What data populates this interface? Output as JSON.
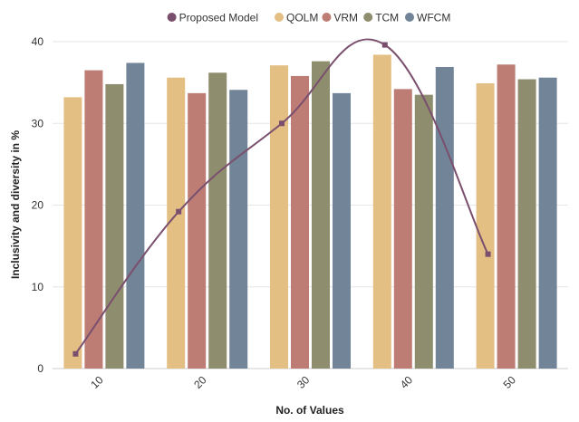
{
  "chart_data": {
    "type": "bar",
    "xlabel": "No. of Values",
    "ylabel": "Inclusivity and diversity in %",
    "categories": [
      "10",
      "20",
      "30",
      "40",
      "50"
    ],
    "ylim": [
      0,
      40
    ],
    "yticks": [
      "0",
      "10",
      "20",
      "30",
      "40"
    ],
    "grid": "horizontal",
    "legend_position": "top-center",
    "series": [
      {
        "name": "QOLM",
        "type": "bar",
        "color": "#E3BF84",
        "values": [
          33.2,
          35.6,
          37.1,
          38.4,
          34.9
        ]
      },
      {
        "name": "VRM",
        "type": "bar",
        "color": "#BD7D74",
        "values": [
          36.5,
          33.7,
          35.8,
          34.2,
          37.2
        ]
      },
      {
        "name": "TCM",
        "type": "bar",
        "color": "#8E8D6D",
        "values": [
          34.8,
          36.2,
          37.6,
          33.5,
          35.4
        ]
      },
      {
        "name": "WFCM",
        "type": "bar",
        "color": "#728497",
        "values": [
          37.4,
          34.1,
          33.7,
          36.9,
          35.6
        ]
      },
      {
        "name": "Proposed Model",
        "type": "line",
        "color": "#7A4F6E",
        "values": [
          1.8,
          19.2,
          30.0,
          39.6,
          14.0
        ]
      }
    ]
  }
}
